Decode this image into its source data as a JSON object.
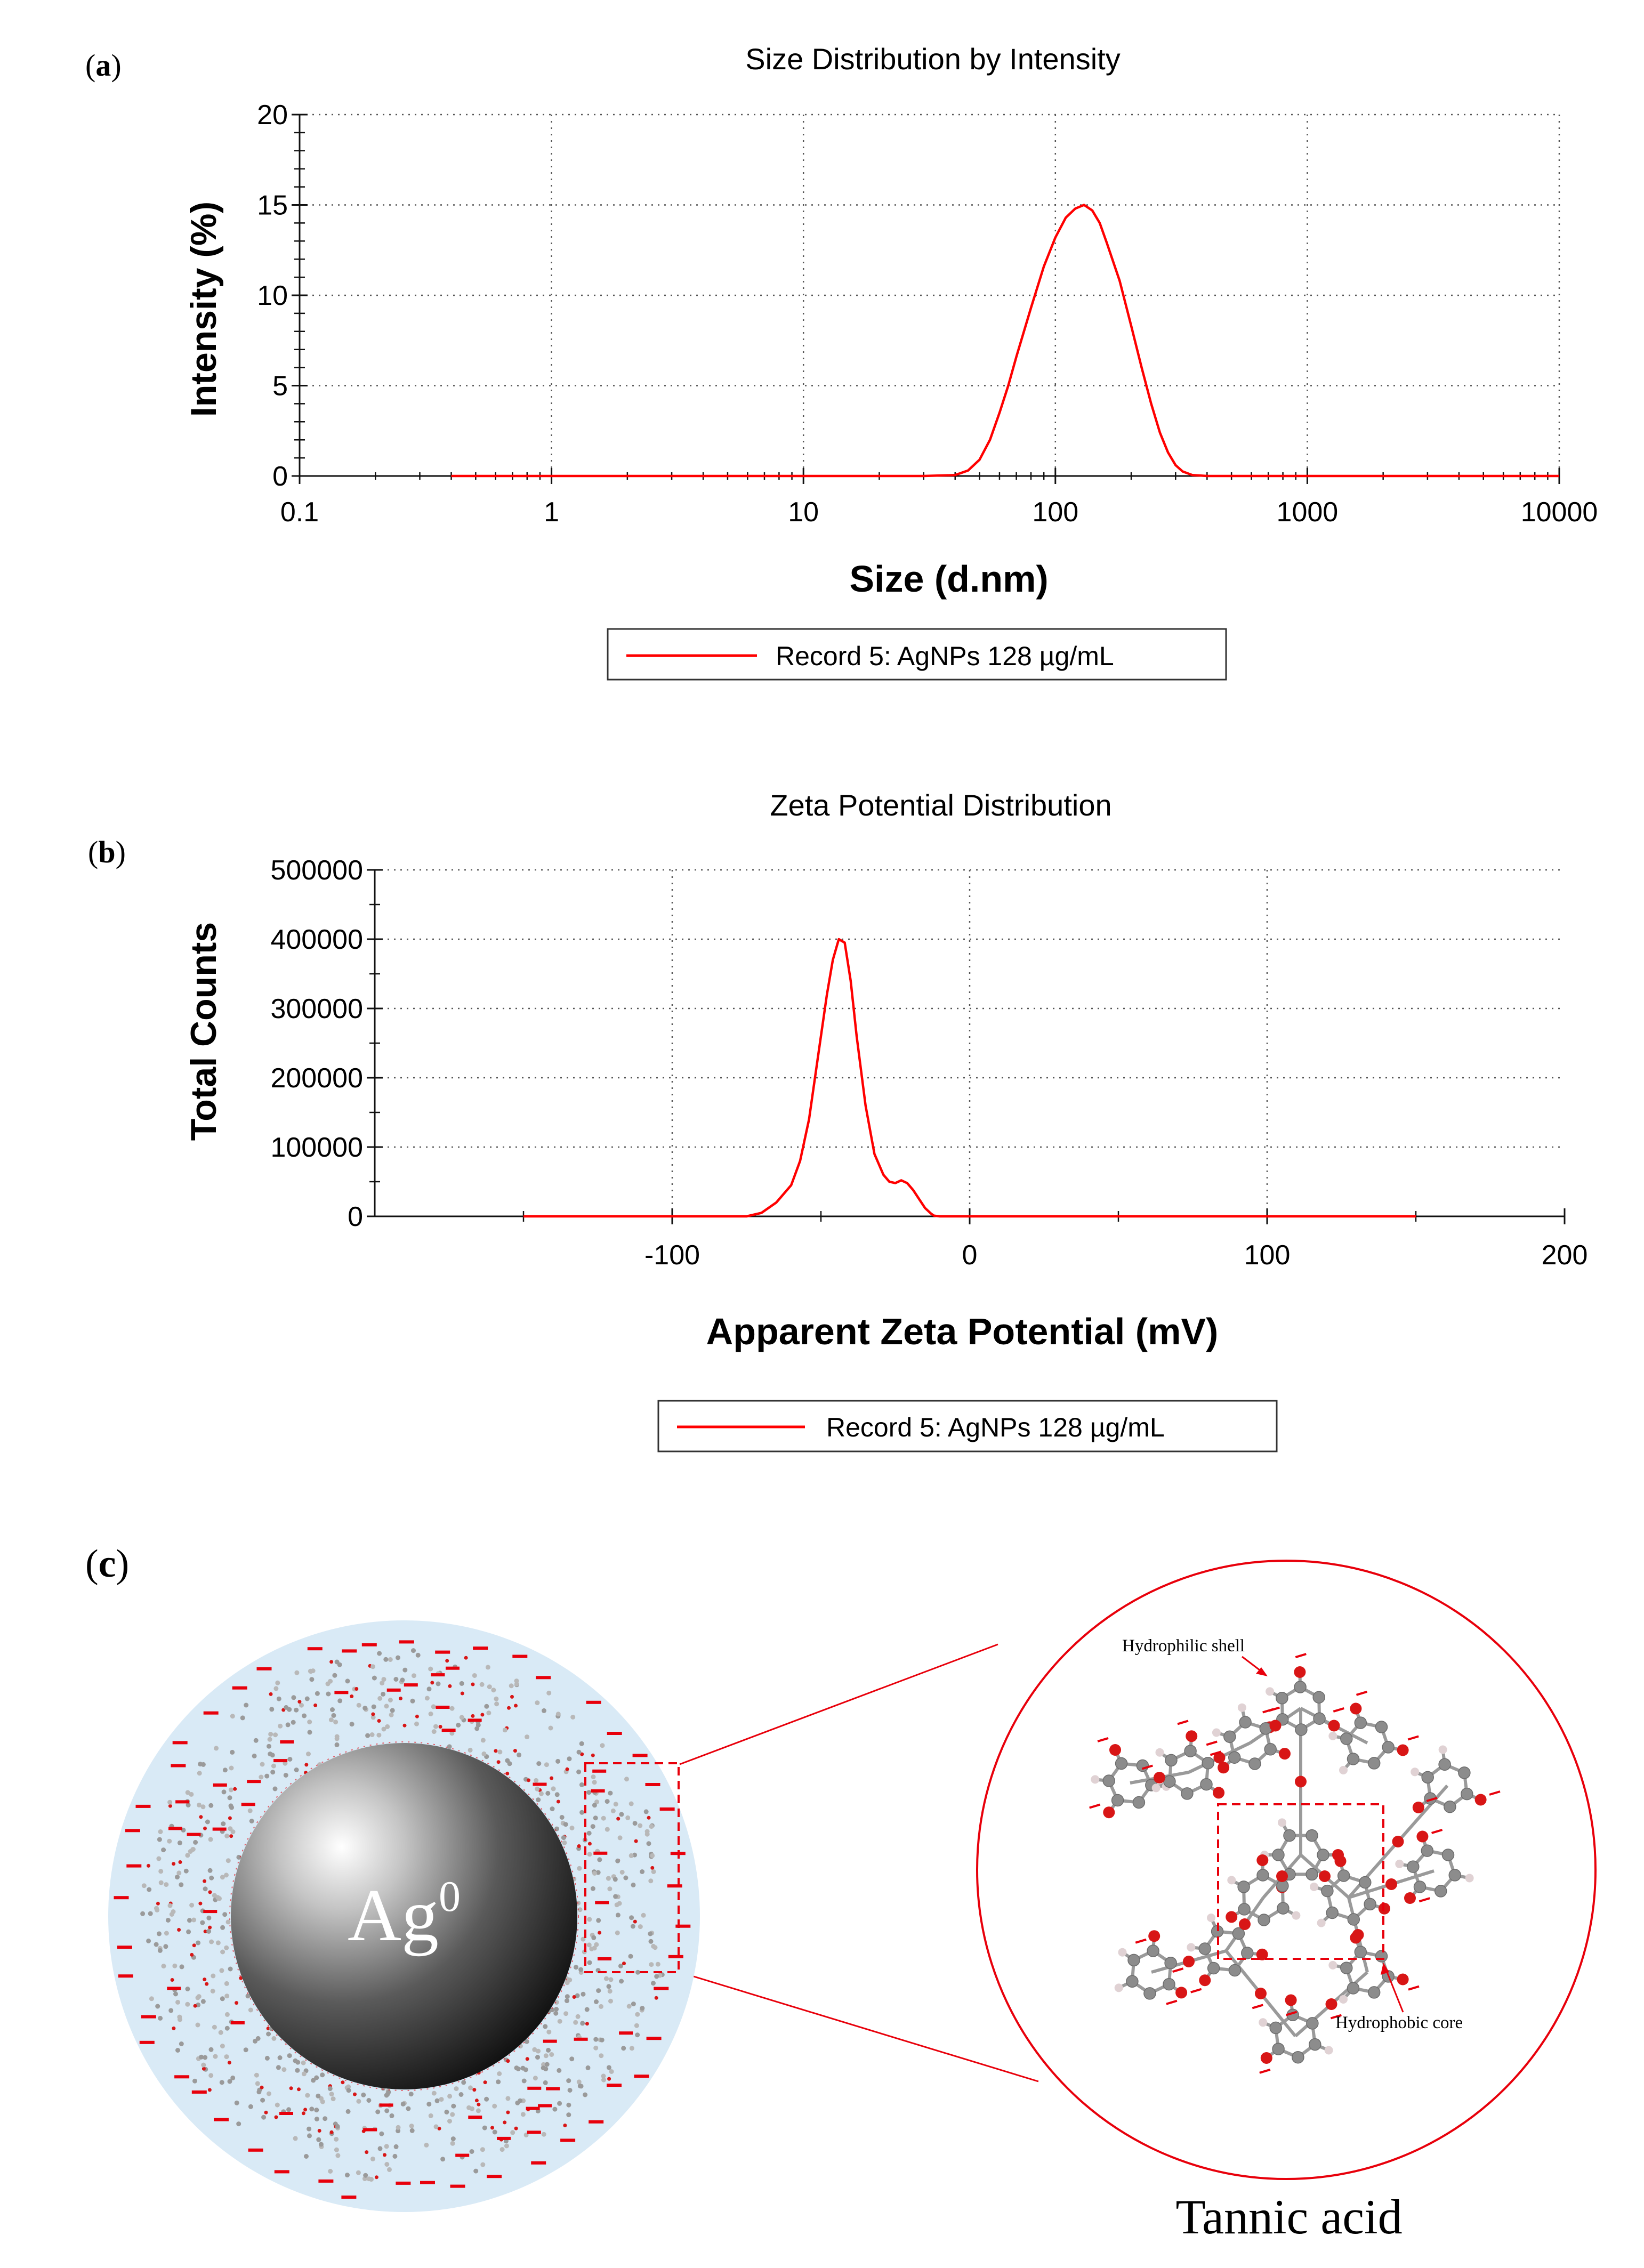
{
  "panel_a": {
    "label_letter": "a",
    "chart_data": {
      "type": "line",
      "title": "Size Distribution by Intensity",
      "xlabel": "Size (d.nm)",
      "ylabel": "Intensity (%)",
      "xscale": "log",
      "xlim": [
        0.1,
        10000
      ],
      "ylim": [
        0,
        20
      ],
      "xticks": [
        "0.1",
        "1",
        "10",
        "100",
        "1000",
        "10000"
      ],
      "yticks": [
        "0",
        "5",
        "10",
        "15",
        "20"
      ],
      "grid": true,
      "legend": "bottom-center",
      "series": [
        {
          "name": "Record 5: AgNPs 128 µg/mL",
          "color": "#ff0000",
          "x": [
            0.4,
            1,
            10,
            30,
            40,
            45,
            50,
            55,
            60,
            65,
            70,
            75,
            80,
            90,
            100,
            110,
            120,
            130,
            140,
            150,
            160,
            180,
            200,
            220,
            240,
            260,
            280,
            300,
            320,
            350,
            400,
            1000,
            10000
          ],
          "y": [
            0,
            0,
            0,
            0,
            0.05,
            0.3,
            0.9,
            2.0,
            3.5,
            5.0,
            6.6,
            8.0,
            9.3,
            11.6,
            13.2,
            14.3,
            14.8,
            15.0,
            14.7,
            14.0,
            12.9,
            10.8,
            8.3,
            6.0,
            4.0,
            2.4,
            1.3,
            0.6,
            0.25,
            0.05,
            0,
            0,
            0
          ]
        }
      ]
    }
  },
  "panel_b": {
    "label_letter": "b",
    "chart_data": {
      "type": "line",
      "title": "Zeta Potential Distribution",
      "xlabel": "Apparent Zeta Potential (mV)",
      "ylabel": "Total Counts",
      "xlim": [
        -200,
        200
      ],
      "ylim": [
        0,
        500000
      ],
      "xticks": [
        -100,
        0,
        100,
        200
      ],
      "yticks": [
        0,
        100000,
        200000,
        300000,
        400000,
        500000
      ],
      "grid": true,
      "legend": "bottom-center",
      "series": [
        {
          "name": "Record 5: AgNPs 128 µg/mL",
          "color": "#ff0000",
          "x": [
            -150,
            -75,
            -70,
            -65,
            -60,
            -57,
            -54,
            -51,
            -48,
            -46,
            -44,
            -42,
            -40,
            -38,
            -35,
            -32,
            -29,
            -27,
            -25,
            -23,
            -21,
            -19,
            -17,
            -15,
            -13,
            -12,
            -10,
            0,
            150
          ],
          "y": [
            0,
            0,
            5000,
            20000,
            45000,
            80000,
            140000,
            230000,
            320000,
            370000,
            400000,
            395000,
            340000,
            260000,
            160000,
            90000,
            60000,
            50000,
            48000,
            52000,
            48000,
            38000,
            25000,
            12000,
            4000,
            1000,
            0,
            0,
            0
          ]
        }
      ]
    }
  },
  "panel_c": {
    "label_letter": "c",
    "core_label": "Ag",
    "core_superscript": "0",
    "hydrophilic_label": "Hydrophilic shell",
    "hydrophobic_label": "Hydrophobic core",
    "molecule_name": "Tannic acid",
    "colors": {
      "shell_fill": "#d9eaf6",
      "charge": "#e8000b",
      "oxygen": "#d81616",
      "carbon": "#8c8c8c",
      "hydrogen": "#e0d2d4"
    }
  }
}
